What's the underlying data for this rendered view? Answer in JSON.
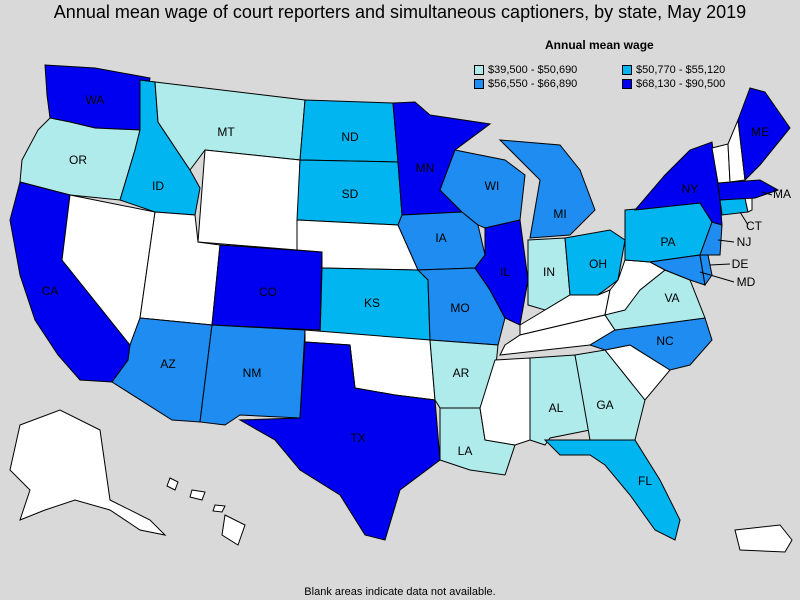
{
  "title": "Annual mean wage of court reporters and simultaneous captioners, by state, May 2019",
  "legend": {
    "title": "Annual mean wage",
    "bins": [
      {
        "label": "$39,500 - $50,690",
        "color": "#b0ebeb"
      },
      {
        "label": "$50,770 - $55,120",
        "color": "#00b5f0"
      },
      {
        "label": "$56,550 - $66,890",
        "color": "#1e8cf0"
      },
      {
        "label": "$68,130 - $90,500",
        "color": "#0000f0"
      }
    ],
    "no_data_color": "#ffffff"
  },
  "states": {
    "WA": "$68,130 - $90,500",
    "OR": "$39,500 - $50,690",
    "CA": "$68,130 - $90,500",
    "ID": "$50,770 - $55,120",
    "MT": "$39,500 - $50,690",
    "ND": "$50,770 - $55,120",
    "SD": "$50,770 - $55,120",
    "MN": "$68,130 - $90,500",
    "WI": "$56,550 - $66,890",
    "MI": "$56,550 - $66,890",
    "IA": "$56,550 - $66,890",
    "IL": "$68,130 - $90,500",
    "IN": "$39,500 - $50,690",
    "OH": "$50,770 - $55,120",
    "PA": "$50,770 - $55,120",
    "NY": "$68,130 - $90,500",
    "ME": "$68,130 - $90,500",
    "MA": "$68,130 - $90,500",
    "CT": "$50,770 - $55,120",
    "NJ": "$56,550 - $66,890",
    "DE": "$56,550 - $66,890",
    "MD": "$56,550 - $66,890",
    "VA": "$39,500 - $50,690",
    "NC": "$56,550 - $66,890",
    "CO": "$68,130 - $90,500",
    "KS": "$50,770 - $55,120",
    "MO": "$56,550 - $66,890",
    "AZ": "$56,550 - $66,890",
    "NM": "$56,550 - $66,890",
    "TX": "$68,130 - $90,500",
    "AR": "$39,500 - $50,690",
    "LA": "$39,500 - $50,690",
    "AL": "$39,500 - $50,690",
    "GA": "$39,500 - $50,690",
    "FL": "$50,770 - $55,120"
  },
  "footer": "Blank areas indicate data not available."
}
